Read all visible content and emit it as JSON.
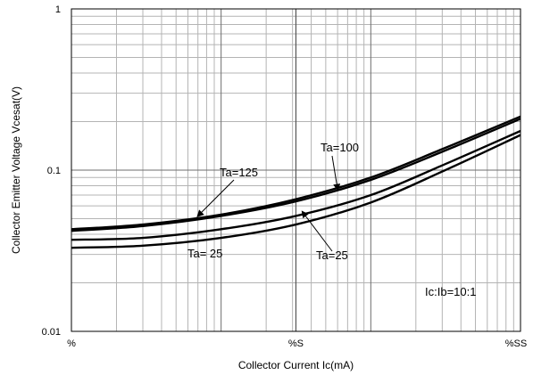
{
  "chart_data": {
    "type": "line",
    "scale": {
      "x": "log",
      "y": "log"
    },
    "xlim": [
      1,
      1000
    ],
    "ylim": [
      0.01,
      1
    ],
    "grid": true,
    "xlabel": "Collector Current  Ic(mA)",
    "ylabel": "Collector Emitter Voltage  Vcesat(V)",
    "x_tick_labels": [
      {
        "x": 1,
        "label": "%"
      },
      {
        "x": 31.6,
        "label": "%S"
      },
      {
        "x": 1000,
        "label": "%SS"
      }
    ],
    "y_tick_labels": [
      {
        "y": 1,
        "label": "1"
      },
      {
        "y": 0.1,
        "label": "0.1"
      },
      {
        "y": 0.01,
        "label": "0.01"
      }
    ],
    "series": [
      {
        "name": "Ta=125",
        "x": [
          1,
          3,
          10,
          31.6,
          100,
          300,
          1000
        ],
        "y": [
          0.043,
          0.046,
          0.053,
          0.066,
          0.09,
          0.135,
          0.215
        ]
      },
      {
        "name": "Ta=100",
        "x": [
          1,
          3,
          10,
          31.6,
          100,
          300,
          1000
        ],
        "y": [
          0.042,
          0.045,
          0.052,
          0.064,
          0.087,
          0.13,
          0.208
        ]
      },
      {
        "name": "Ta=25",
        "x": [
          1,
          3,
          10,
          31.6,
          100,
          300,
          1000
        ],
        "y": [
          0.037,
          0.038,
          0.043,
          0.052,
          0.07,
          0.107,
          0.175
        ]
      },
      {
        "name": "Ta= 25",
        "x": [
          1,
          3,
          10,
          31.6,
          100,
          300,
          1000
        ],
        "y": [
          0.033,
          0.034,
          0.038,
          0.046,
          0.063,
          0.098,
          0.165
        ]
      }
    ],
    "annotations": [
      {
        "text": "Ta=100",
        "points_to": {
          "x": 60,
          "y": 0.076
        }
      },
      {
        "text": "Ta=125",
        "points_to": {
          "x": 7,
          "y": 0.052
        }
      },
      {
        "text": "Ta=25",
        "points_to": {
          "x": 35,
          "y": 0.055
        }
      },
      {
        "text": "Ta= 25"
      },
      {
        "text": "Ic:Ib=10:1"
      }
    ]
  }
}
